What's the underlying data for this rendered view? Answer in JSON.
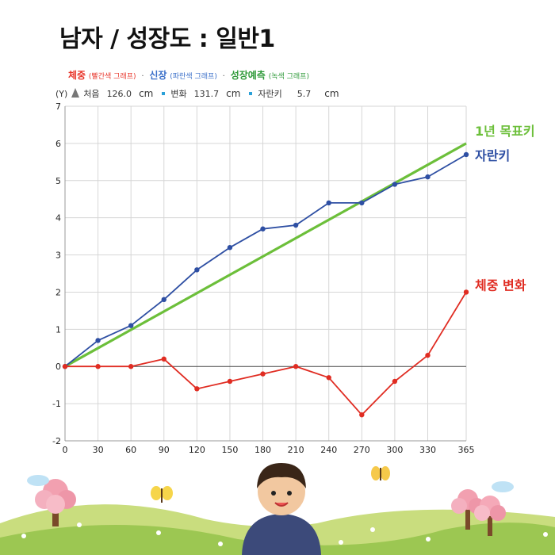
{
  "title": "남자 / 성장도 : 일반1",
  "legend": {
    "weight": {
      "label": "체중",
      "sub": "(빨간색 그래프)",
      "color": "#e8352a"
    },
    "height": {
      "label": "신장",
      "sub": "(파란색 그래프)",
      "color": "#3a6fc9"
    },
    "predict": {
      "label": "성장예측",
      "sub": "(녹색 그래프)",
      "color": "#2f9a3a"
    },
    "separator": "·"
  },
  "info": {
    "y_marker": "(Y)",
    "start_label": "처음",
    "start_value": "126.0",
    "start_unit": "cm",
    "change_label": "변화",
    "change_value": "131.7",
    "change_unit": "cm",
    "growth_label": "자란키",
    "growth_value": "5.7",
    "growth_unit": "cm"
  },
  "chart_data": {
    "type": "line",
    "x": [
      0,
      30,
      60,
      90,
      120,
      150,
      180,
      210,
      240,
      270,
      300,
      330,
      365
    ],
    "xlim": [
      0,
      365
    ],
    "ylim": [
      -2,
      7
    ],
    "x_ticks": [
      "0",
      "30",
      "60",
      "90",
      "120",
      "150",
      "180",
      "210",
      "240",
      "270",
      "300",
      "330",
      "365"
    ],
    "y_ticks": [
      "-2",
      "-1",
      "0",
      "1",
      "2",
      "3",
      "4",
      "5",
      "6",
      "7"
    ],
    "grid": true,
    "series": [
      {
        "name": "1년 목표키",
        "color": "#6cbf3a",
        "markers": false,
        "x": [
          0,
          365
        ],
        "values": [
          0,
          6
        ]
      },
      {
        "name": "자란키",
        "color": "#2e4fa3",
        "markers": true,
        "values": [
          0,
          0.7,
          1.1,
          1.8,
          2.6,
          3.2,
          3.7,
          3.8,
          4.4,
          4.4,
          4.9,
          5.1,
          5.7
        ]
      },
      {
        "name": "체중 변화",
        "color": "#e02c22",
        "markers": true,
        "values": [
          0,
          0,
          0,
          0.2,
          -0.6,
          -0.4,
          -0.2,
          0,
          -0.3,
          -1.3,
          -0.4,
          0.3,
          2.0
        ]
      }
    ]
  }
}
